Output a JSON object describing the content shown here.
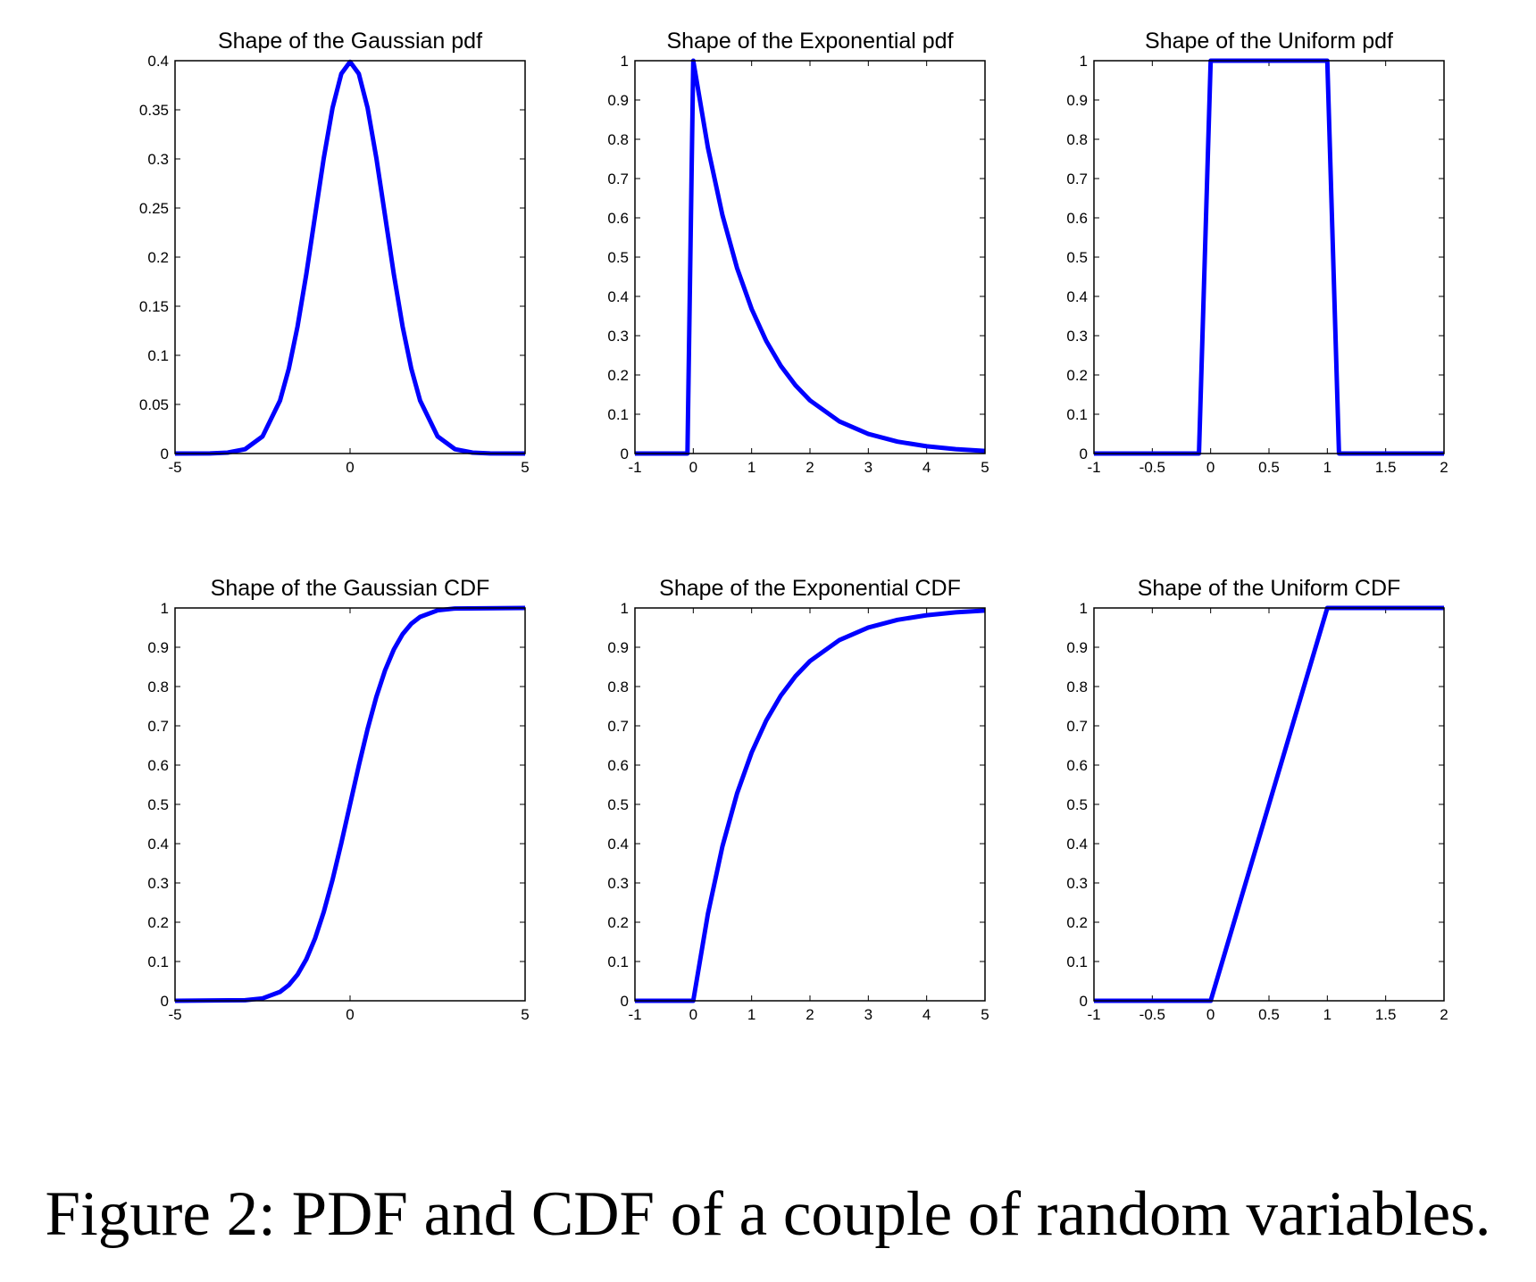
{
  "chart_data": [
    {
      "type": "line",
      "title": "Shape of the Gaussian pdf",
      "xlim": [
        -5,
        5
      ],
      "ylim": [
        0,
        0.4
      ],
      "xticks": [
        "-5",
        "0",
        "5"
      ],
      "yticks": [
        "0",
        "0.05",
        "0.1",
        "0.15",
        "0.2",
        "0.25",
        "0.3",
        "0.35",
        "0.4"
      ],
      "series": [
        {
          "color": "#0000ff",
          "x": [
            -5,
            -4,
            -3.5,
            -3,
            -2.5,
            -2,
            -1.75,
            -1.5,
            -1.25,
            -1,
            -0.75,
            -0.5,
            -0.25,
            0,
            0.25,
            0.5,
            0.75,
            1,
            1.25,
            1.5,
            1.75,
            2,
            2.5,
            3,
            3.5,
            4,
            5
          ],
          "y": [
            0,
            0.0001,
            0.0009,
            0.0044,
            0.0175,
            0.054,
            0.0863,
            0.1295,
            0.1826,
            0.242,
            0.3011,
            0.3521,
            0.3867,
            0.3989,
            0.3867,
            0.3521,
            0.3011,
            0.242,
            0.1826,
            0.1295,
            0.0863,
            0.054,
            0.0175,
            0.0044,
            0.0009,
            0.0001,
            0
          ]
        }
      ]
    },
    {
      "type": "line",
      "title": "Shape of the Exponential pdf",
      "xlim": [
        -1,
        5
      ],
      "ylim": [
        0,
        1
      ],
      "xticks": [
        "-1",
        "0",
        "1",
        "2",
        "3",
        "4",
        "5"
      ],
      "yticks": [
        "0",
        "0.1",
        "0.2",
        "0.3",
        "0.4",
        "0.5",
        "0.6",
        "0.7",
        "0.8",
        "0.9",
        "1"
      ],
      "series": [
        {
          "color": "#0000ff",
          "x": [
            -1,
            -0.1,
            0,
            0.25,
            0.5,
            0.75,
            1,
            1.25,
            1.5,
            1.75,
            2,
            2.5,
            3,
            3.5,
            4,
            4.5,
            5
          ],
          "y": [
            0,
            0,
            1,
            0.7788,
            0.6065,
            0.4724,
            0.3679,
            0.2865,
            0.2231,
            0.1738,
            0.1353,
            0.0821,
            0.0498,
            0.0302,
            0.0183,
            0.0111,
            0.0067
          ]
        }
      ]
    },
    {
      "type": "line",
      "title": "Shape of the Uniform pdf",
      "xlim": [
        -1,
        2
      ],
      "ylim": [
        0,
        1
      ],
      "xticks": [
        "-1",
        "-0.5",
        "0",
        "0.5",
        "1",
        "1.5",
        "2"
      ],
      "yticks": [
        "0",
        "0.1",
        "0.2",
        "0.3",
        "0.4",
        "0.5",
        "0.6",
        "0.7",
        "0.8",
        "0.9",
        "1"
      ],
      "series": [
        {
          "color": "#0000ff",
          "x": [
            -1,
            -0.1,
            0,
            1,
            1.1,
            2
          ],
          "y": [
            0,
            0,
            1,
            1,
            0,
            0
          ]
        }
      ]
    },
    {
      "type": "line",
      "title": "Shape of the Gaussian CDF",
      "xlim": [
        -5,
        5
      ],
      "ylim": [
        0,
        1
      ],
      "xticks": [
        "-5",
        "0",
        "5"
      ],
      "yticks": [
        "0",
        "0.1",
        "0.2",
        "0.3",
        "0.4",
        "0.5",
        "0.6",
        "0.7",
        "0.8",
        "0.9",
        "1"
      ],
      "series": [
        {
          "color": "#0000ff",
          "x": [
            -5,
            -3,
            -2.5,
            -2,
            -1.75,
            -1.5,
            -1.25,
            -1,
            -0.75,
            -0.5,
            -0.25,
            0,
            0.25,
            0.5,
            0.75,
            1,
            1.25,
            1.5,
            1.75,
            2,
            2.5,
            3,
            5
          ],
          "y": [
            0,
            0.0013,
            0.0062,
            0.0228,
            0.0401,
            0.0668,
            0.1056,
            0.1587,
            0.2266,
            0.3085,
            0.4013,
            0.5,
            0.5987,
            0.6915,
            0.7734,
            0.8413,
            0.8944,
            0.9332,
            0.9599,
            0.9772,
            0.9938,
            0.9987,
            1
          ]
        }
      ]
    },
    {
      "type": "line",
      "title": "Shape of the Exponential CDF",
      "xlim": [
        -1,
        5
      ],
      "ylim": [
        0,
        1
      ],
      "xticks": [
        "-1",
        "0",
        "1",
        "2",
        "3",
        "4",
        "5"
      ],
      "yticks": [
        "0",
        "0.1",
        "0.2",
        "0.3",
        "0.4",
        "0.5",
        "0.6",
        "0.7",
        "0.8",
        "0.9",
        "1"
      ],
      "series": [
        {
          "color": "#0000ff",
          "x": [
            -1,
            0,
            0.25,
            0.5,
            0.75,
            1,
            1.25,
            1.5,
            1.75,
            2,
            2.5,
            3,
            3.5,
            4,
            4.5,
            5
          ],
          "y": [
            0,
            0,
            0.2212,
            0.3935,
            0.5276,
            0.6321,
            0.7135,
            0.7769,
            0.8262,
            0.8647,
            0.9179,
            0.9502,
            0.9698,
            0.9817,
            0.9889,
            0.9933
          ]
        }
      ]
    },
    {
      "type": "line",
      "title": "Shape of the Uniform CDF",
      "xlim": [
        -1,
        2
      ],
      "ylim": [
        0,
        1
      ],
      "xticks": [
        "-1",
        "-0.5",
        "0",
        "0.5",
        "1",
        "1.5",
        "2"
      ],
      "yticks": [
        "0",
        "0.1",
        "0.2",
        "0.3",
        "0.4",
        "0.5",
        "0.6",
        "0.7",
        "0.8",
        "0.9",
        "1"
      ],
      "series": [
        {
          "color": "#0000ff",
          "x": [
            -1,
            0,
            1,
            2
          ],
          "y": [
            0,
            0,
            1,
            1
          ]
        }
      ]
    }
  ],
  "caption": "Figure 2: PDF and CDF of a couple of random variables."
}
